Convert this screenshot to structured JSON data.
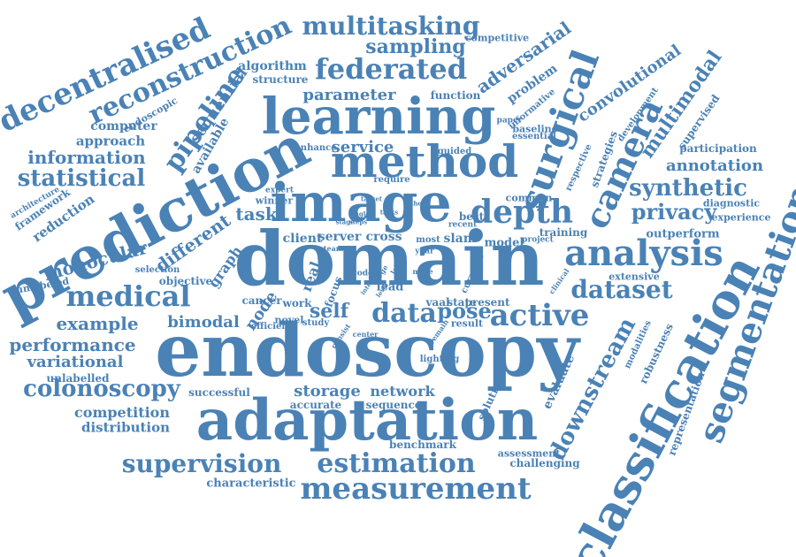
{
  "color": "#4a82b6",
  "words": [
    "endoscopy",
    "domain",
    "adaptation",
    "image",
    "learning",
    "method",
    "prediction",
    "classification",
    "segmentation",
    "surgical",
    "camera",
    "analysis",
    "depth",
    "measurement",
    "estimation",
    "supervision",
    "federated",
    "data",
    "active",
    "dataset",
    "medical",
    "decentralised",
    "reconstruction",
    "multitasking",
    "colonoscopy",
    "pipeline",
    "sampling",
    "synthetic",
    "privacy",
    "multimodal",
    "statistical",
    "information",
    "performance",
    "variational",
    "downstream",
    "pose",
    "self",
    "annotation",
    "adversarial",
    "convolutional",
    "task",
    "monocular",
    "different",
    "example",
    "bimodal",
    "parameter",
    "service",
    "storage",
    "network",
    "sequential",
    "competition",
    "distribution",
    "graph",
    "reduction",
    "framework",
    "architecture",
    "computer",
    "approach",
    "endoscopic",
    "algorithm",
    "structure",
    "competitive",
    "function",
    "problem",
    "supervised",
    "development",
    "participation",
    "diagnostic",
    "experience",
    "outperform",
    "extensive",
    "representation",
    "robustness",
    "modalities",
    "evaluate",
    "assessment",
    "challenging",
    "benchmark",
    "characteristic",
    "unlabelled",
    "unlabeled",
    "objective",
    "selection",
    "node",
    "real",
    "focus",
    "lead",
    "vaal",
    "state",
    "present",
    "result",
    "novel",
    "study",
    "cancer",
    "work",
    "efficient",
    "lighting",
    "solution",
    "accurate",
    "sequence",
    "successful",
    "client",
    "server",
    "cross",
    "slam",
    "model",
    "project",
    "training",
    "common",
    "best",
    "recent",
    "guided",
    "require",
    "enhance",
    "informative",
    "baseline",
    "essential",
    "paper",
    "respective",
    "strategies",
    "winner",
    "expert",
    "available",
    "year",
    "most",
    "team",
    "code",
    "curation",
    "clinical",
    "more",
    "center",
    "consist",
    "remain",
    "label",
    "large",
    "level",
    "interest",
    "single",
    "stage",
    "tasks",
    "steps",
    "other",
    "target"
  ]
}
